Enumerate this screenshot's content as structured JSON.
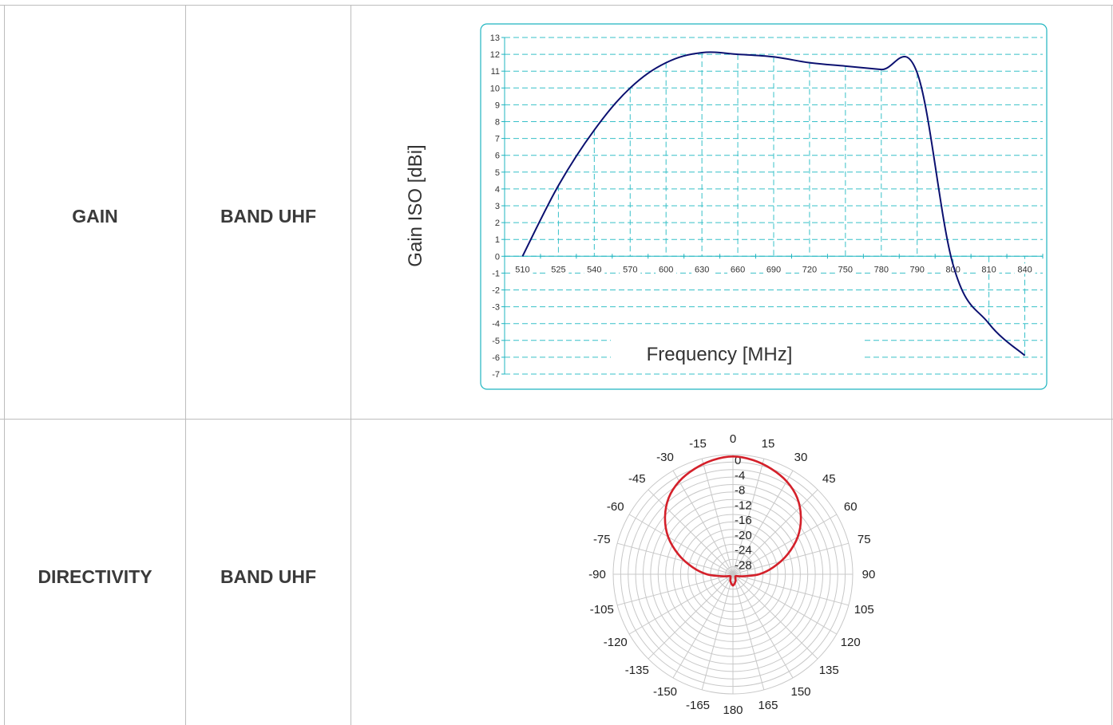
{
  "rows": [
    {
      "label": "GAIN",
      "band": "BAND UHF"
    },
    {
      "label": "DIRECTIVITY",
      "band": "BAND UHF"
    }
  ],
  "colors": {
    "curve": "#0b1070",
    "grid": "#37c0c8",
    "frame": "#1fb5c0",
    "pattern": "#d4202a",
    "polar_grid": "#c8c8c8"
  },
  "chart_data": [
    {
      "type": "line",
      "xlabel": "Frequency [MHz]",
      "ylabel": "Gain ISO [dBi]",
      "categories": [
        "510",
        "525",
        "540",
        "570",
        "600",
        "630",
        "660",
        "690",
        "720",
        "750",
        "780",
        "790",
        "800",
        "810",
        "840"
      ],
      "ylim": [
        -7,
        13
      ],
      "yticks": [
        "13",
        "12",
        "11",
        "10",
        "9",
        "8",
        "7",
        "6",
        "5",
        "4",
        "3",
        "2",
        "1",
        "0",
        "-1",
        "-2",
        "-3",
        "-4",
        "-5",
        "-6",
        "-7"
      ],
      "grid": true,
      "series": [
        {
          "values": [
            0,
            4.2,
            7.5,
            10.0,
            11.5,
            12.1,
            12.0,
            11.85,
            11.5,
            11.3,
            11.1,
            10.9,
            -0.5,
            -4.0,
            -5.9
          ]
        }
      ]
    },
    {
      "type": "polar",
      "angle_labels": [
        "0",
        "15",
        "30",
        "45",
        "60",
        "75",
        "90",
        "105",
        "120",
        "135",
        "150",
        "165",
        "180",
        "-165",
        "-150",
        "-135",
        "-120",
        "-105",
        "-90",
        "-75",
        "-60",
        "-45",
        "-30",
        "-15"
      ],
      "radial_labels": [
        "0",
        "-4",
        "-8",
        "-12",
        "-16",
        "-20",
        "-24",
        "-28"
      ],
      "rlim": [
        -32,
        0
      ],
      "angles_deg": [
        0,
        10,
        20,
        30,
        40,
        50,
        60,
        70,
        80,
        90,
        100,
        120,
        140,
        160,
        180,
        200,
        220,
        240,
        260,
        270,
        280,
        290,
        300,
        310,
        320,
        330,
        340,
        350,
        360
      ],
      "values_db": [
        -0.5,
        -1,
        -2,
        -3.3,
        -5.3,
        -8.3,
        -12,
        -16.5,
        -21,
        -25,
        -29,
        -31,
        -31,
        -30,
        -29,
        -30,
        -31,
        -31,
        -29,
        -25,
        -21,
        -16.5,
        -12,
        -8.3,
        -5.3,
        -3.3,
        -2,
        -1,
        -0.5
      ]
    }
  ]
}
